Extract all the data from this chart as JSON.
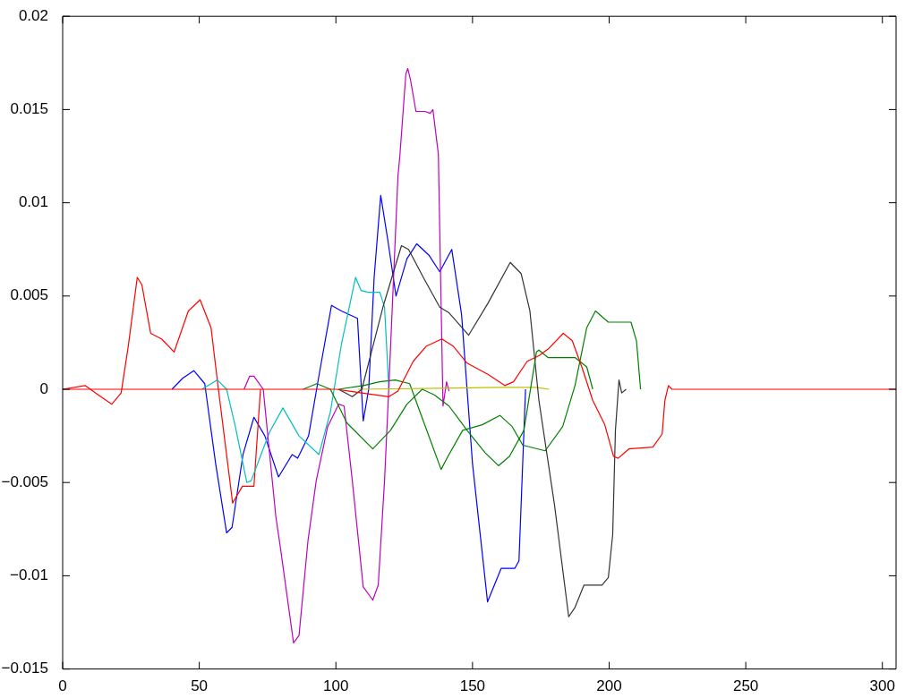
{
  "chart_data": {
    "type": "line",
    "xlim": [
      0,
      305
    ],
    "ylim": [
      -0.015,
      0.02
    ],
    "xticks": [
      0,
      50,
      100,
      150,
      200,
      250,
      300
    ],
    "yticks": [
      {
        "value": -0.015,
        "label": "−0.015"
      },
      {
        "value": -0.01,
        "label": "−0.01"
      },
      {
        "value": -0.005,
        "label": "−0.005"
      },
      0,
      0.005,
      0.01,
      0.015,
      0.02
    ],
    "series": [
      {
        "color": "#0000ff",
        "x": [
          40,
          44,
          48,
          52,
          56,
          60,
          62,
          66,
          70,
          74,
          79,
          84,
          86,
          90,
          94,
          98.4,
          102,
          107.9,
          110,
          112,
          114,
          116.4,
          119,
          122,
          126,
          129.6,
          134,
          138,
          142.4,
          146,
          150,
          155.5,
          160.5,
          165.5,
          167,
          169.4
        ],
        "values": [
          0,
          0.0006,
          0.001,
          0.0003,
          -0.004,
          -0.0077,
          -0.0074,
          -0.0035,
          -0.0015,
          -0.0025,
          -0.0047,
          -0.0035,
          -0.0037,
          -0.0025,
          0.0009,
          0.0045,
          0.0042,
          0.0038,
          -0.0017,
          0,
          0.006,
          0.0104,
          0.008,
          0.005,
          0.007,
          0.0078,
          0.0072,
          0.0063,
          0.0075,
          0.004,
          -0.004,
          -0.0114,
          -0.0096,
          -0.0096,
          -0.0092,
          0
        ]
      },
      {
        "color": "#008000",
        "x": [
          101,
          110,
          116,
          121.7,
          127,
          132,
          138.5,
          141,
          146.4,
          153.6,
          160,
          164.5,
          168.4,
          176.6,
          183,
          187.5,
          191.8,
          195,
          199.7,
          208,
          210,
          211.5
        ],
        "values": [
          0,
          0.0002,
          0.0004,
          0.0005,
          0.0003,
          -0.0017,
          -0.0043,
          -0.0036,
          -0.0022,
          -0.0019,
          -0.0014,
          -0.002,
          -0.003,
          -0.0033,
          -0.002,
          0.0002,
          0.0033,
          0.0042,
          0.0036,
          0.0036,
          0.0026,
          0
        ]
      },
      {
        "color": "#ff0000",
        "x": [
          0,
          8.2,
          13,
          18,
          21.4,
          24,
          27.3,
          29,
          32.2,
          36.2,
          40.8,
          46,
          50.3,
          54.3,
          57,
          62.2,
          65.8,
          70,
          72.4
        ],
        "values": [
          0,
          0.0002,
          -0.0003,
          -0.0008,
          -0.0002,
          0.0023,
          0.006,
          0.0056,
          0.003,
          0.0027,
          0.002,
          0.0042,
          0.0048,
          0.0033,
          0,
          -0.0061,
          -0.0052,
          -0.0052,
          0
        ]
      },
      {
        "color": "#00bfbf",
        "x": [
          51,
          56.6,
          60,
          63.2,
          67.4,
          69,
          75.7,
          80.6,
          86.5,
          93.8,
          98,
          102,
          107.2,
          109.2,
          111.8,
          116.1,
          117.8,
          119.4
        ],
        "values": [
          0,
          0.0005,
          0,
          -0.002,
          -0.005,
          -0.0049,
          -0.0023,
          -0.001,
          -0.0025,
          -0.0035,
          -0.0012,
          0.0024,
          0.006,
          0.0053,
          0.0052,
          0.0052,
          0.0044,
          0
        ]
      },
      {
        "color": "#bf00bf",
        "x": [
          66.4,
          68.4,
          70,
          73.4,
          78,
          79.6,
          84.5,
          86.5,
          89.8,
          92.8,
          97,
          101,
          103,
          106,
          110,
          113.5,
          115.5,
          117.8,
          119.4,
          122.7,
          123.4,
          125.6,
          126.3,
          127.3,
          129.3,
          132.6,
          134.5,
          135.5,
          137.5,
          138.2,
          139.2,
          140.5,
          141.4
        ],
        "values": [
          0,
          0.0007,
          0.0007,
          0,
          -0.0068,
          -0.0084,
          -0.0136,
          -0.0132,
          -0.0081,
          -0.0049,
          -0.002,
          -0.0008,
          -0.0009,
          -0.0049,
          -0.0106,
          -0.0113,
          -0.0105,
          -0.0049,
          0.0002,
          0.0114,
          0.0125,
          0.0169,
          0.0172,
          0.0166,
          0.0149,
          0.0149,
          0.0148,
          0.015,
          0.0126,
          0.0069,
          -0.0009,
          0.0004,
          -0.0001
        ]
      },
      {
        "color": "#bfbf00",
        "x": [
          108,
          160,
          173,
          178
        ],
        "values": [
          0,
          0.0001,
          0.0001,
          0
        ]
      },
      {
        "color": "#333333",
        "x": [
          101,
          106,
          109.5,
          113,
          117.4,
          124,
          126.6,
          132,
          138,
          141.4,
          148.6,
          155.6,
          163.8,
          167.8,
          171,
          174.3,
          180,
          185.2,
          187.5,
          190.8,
          197.4,
          199.7,
          201.3,
          202.3,
          203.6,
          204.6,
          206.2
        ],
        "values": [
          0,
          -0.0004,
          0,
          0.002,
          0.0045,
          0.0077,
          0.0075,
          0.006,
          0.0044,
          0.0041,
          0.0029,
          0.0046,
          0.0068,
          0.0062,
          0.0042,
          -0.0006,
          -0.0062,
          -0.0122,
          -0.0117,
          -0.0105,
          -0.0105,
          -0.0101,
          -0.0078,
          -0.0022,
          0.0005,
          -0.0002,
          0
        ]
      },
      {
        "color": "#008000",
        "x": [
          88,
          93,
          98,
          104,
          113.5,
          120,
          126,
          131.6,
          136,
          141.4,
          148,
          154.6,
          159.5,
          163.5,
          168.8,
          173.4,
          174.3,
          177.6,
          187.5,
          191.8,
          194
        ],
        "values": [
          0,
          0.0003,
          0,
          -0.0018,
          -0.0032,
          -0.0022,
          -0.0008,
          0,
          -0.0003,
          -0.0009,
          -0.0022,
          -0.0034,
          -0.0041,
          -0.0036,
          -0.0022,
          0.002,
          0.0021,
          0.0017,
          0.0017,
          0.0012,
          0
        ]
      },
      {
        "color": "#ff0000",
        "x": [
          0,
          100,
          105,
          109.5,
          119.4,
          122.7,
          128.3,
          133,
          138.8,
          143,
          148,
          155.6,
          161.8,
          165,
          170,
          174.3,
          178,
          183.2,
          186.5,
          190,
          194,
          198.4,
          201.6,
          203.3,
          207.2,
          216,
          219.4,
          220.4,
          221.7,
          223,
          305
        ],
        "values": [
          0,
          0,
          -0.0001,
          -0.0002,
          -0.0004,
          -0.0001,
          0.0015,
          0.0023,
          0.0027,
          0.0023,
          0.0014,
          0.0008,
          0.0002,
          0.0004,
          0.0015,
          0.0018,
          0.0022,
          0.003,
          0.0026,
          0.0012,
          -0.0006,
          -0.0019,
          -0.0036,
          -0.0037,
          -0.0032,
          -0.0031,
          -0.0024,
          -0.0006,
          0.0002,
          0,
          0
        ]
      }
    ]
  }
}
